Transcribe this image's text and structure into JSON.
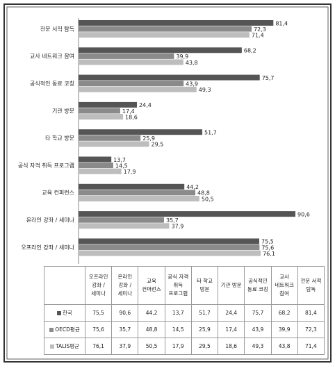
{
  "chart_data": {
    "type": "hbar",
    "categories": [
      "전문 서적 탐독",
      "교사 네트워크 참여",
      "공식적인 동료 코칭",
      "기관 방문",
      "타 학교 방문",
      "공식 자격 취득 프로그램",
      "교육 컨퍼런스",
      "온라인 강좌 / 세미나",
      "오프라인 강좌 / 세미나"
    ],
    "series": [
      {
        "name": "한국",
        "color": "#555555",
        "values": [
          81.4,
          68.2,
          75.7,
          24.4,
          51.7,
          13.7,
          44.2,
          90.6,
          75.5
        ],
        "value_labels": [
          "81,4",
          "68,2",
          "75,7",
          "24,4",
          "51,7",
          "13,7",
          "44,2",
          "90,6",
          "75,5"
        ]
      },
      {
        "name": "OECD평균",
        "color": "#8a8a8a",
        "values": [
          72.3,
          39.9,
          43.9,
          17.4,
          25.9,
          14.5,
          48.8,
          35.7,
          75.6
        ],
        "value_labels": [
          "72,3",
          "39,9",
          "43,9",
          "17,4",
          "25,9",
          "14,5",
          "48,8",
          "35,7",
          "75,6"
        ]
      },
      {
        "name": "TALIS평균",
        "color": "#bdbdbd",
        "values": [
          71.4,
          43.8,
          49.3,
          18.6,
          29.5,
          17.9,
          50.5,
          37.9,
          76.1
        ],
        "value_labels": [
          "71,4",
          "43,8",
          "49,3",
          "18,6",
          "29,5",
          "17,9",
          "50,5",
          "37,9",
          "76,1"
        ]
      }
    ]
  }
}
